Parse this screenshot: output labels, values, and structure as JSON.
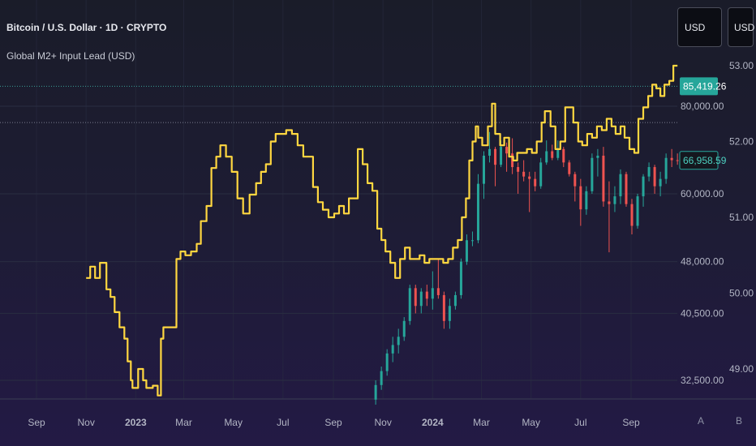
{
  "header": {
    "symbol_title": "Bitcoin / U.S. Dollar · 1D · CRYPTO",
    "indicator_title": "Global M2+ Input Lead (USD)"
  },
  "price_scale_buttons": {
    "unit_right": "USD",
    "unit_left": "USD"
  },
  "bottom_buttons": {
    "auto": "A",
    "b": "B"
  },
  "colors": {
    "m2_line": "#ffd740",
    "candle_up": "#26a69a",
    "candle_down": "#ef5350",
    "price_tag_current": "#26a69a",
    "price_tag_outline": "#26a69a",
    "grid": "#2a2e42"
  },
  "chart_data": {
    "type": "line",
    "x_axis": {
      "type": "date",
      "range": [
        "2022-08-10",
        "2024-10-31"
      ],
      "ticks": [
        {
          "label": "Sep",
          "date": "2022-09-01"
        },
        {
          "label": "Nov",
          "date": "2022-11-01"
        },
        {
          "label": "2023",
          "date": "2023-01-01",
          "bold": true
        },
        {
          "label": "Mar",
          "date": "2023-03-01"
        },
        {
          "label": "May",
          "date": "2023-05-01"
        },
        {
          "label": "Jul",
          "date": "2023-07-01"
        },
        {
          "label": "Sep",
          "date": "2023-09-01"
        },
        {
          "label": "Nov",
          "date": "2023-11-01"
        },
        {
          "label": "2024",
          "date": "2024-01-01",
          "bold": true
        },
        {
          "label": "Mar",
          "date": "2024-03-01"
        },
        {
          "label": "May",
          "date": "2024-05-01"
        },
        {
          "label": "Jul",
          "date": "2024-07-01"
        },
        {
          "label": "Sep",
          "date": "2024-09-01"
        }
      ]
    },
    "left_axis": {
      "name": "BTCUSD",
      "scale": "log",
      "ticks": [
        {
          "label": "80,000.00",
          "value": 80000
        },
        {
          "label": "60,000.00",
          "value": 60000
        },
        {
          "label": "48,000.00",
          "value": 48000
        },
        {
          "label": "40,500.00",
          "value": 40500
        },
        {
          "label": "32,500.00",
          "value": 32500
        }
      ]
    },
    "right_axis": {
      "name": "Global M2+",
      "range": [
        48.6,
        53.2
      ],
      "ticks": [
        {
          "label": "53.00",
          "value": 53
        },
        {
          "label": "52.00",
          "value": 52
        },
        {
          "label": "51.00",
          "value": 51
        },
        {
          "label": "50.00",
          "value": 50
        },
        {
          "label": "49.00",
          "value": 49
        }
      ]
    },
    "price_tags": [
      {
        "label": "85,419.26",
        "value": 85419.26,
        "style": "filled"
      },
      {
        "label": "66,958.59",
        "value": 66958.59,
        "style": "outline"
      }
    ],
    "horizontal_lines": [
      {
        "value": 85419.26,
        "axis": "left",
        "style": "dotted"
      },
      {
        "value": 52.25,
        "axis": "right",
        "style": "dotted"
      }
    ],
    "series": [
      {
        "name": "Global M2+ Input Lead (USD)",
        "axis": "right",
        "type": "step-line",
        "points": [
          [
            "2022-11-01",
            50.2
          ],
          [
            "2022-11-06",
            50.35
          ],
          [
            "2022-11-12",
            50.2
          ],
          [
            "2022-11-18",
            50.4
          ],
          [
            "2022-11-26",
            50.05
          ],
          [
            "2022-12-01",
            49.95
          ],
          [
            "2022-12-06",
            49.75
          ],
          [
            "2022-12-12",
            49.55
          ],
          [
            "2022-12-18",
            49.4
          ],
          [
            "2022-12-22",
            49.1
          ],
          [
            "2022-12-26",
            48.85
          ],
          [
            "2022-12-28",
            48.75
          ],
          [
            "2023-01-04",
            49.0
          ],
          [
            "2023-01-10",
            48.85
          ],
          [
            "2023-01-14",
            48.75
          ],
          [
            "2023-01-22",
            48.78
          ],
          [
            "2023-01-28",
            48.65
          ],
          [
            "2023-02-01",
            49.4
          ],
          [
            "2023-02-04",
            49.55
          ],
          [
            "2023-02-12",
            49.55
          ],
          [
            "2023-02-20",
            50.45
          ],
          [
            "2023-02-25",
            50.55
          ],
          [
            "2023-03-03",
            50.5
          ],
          [
            "2023-03-10",
            50.55
          ],
          [
            "2023-03-17",
            50.65
          ],
          [
            "2023-03-22",
            50.95
          ],
          [
            "2023-03-29",
            51.15
          ],
          [
            "2023-04-04",
            51.65
          ],
          [
            "2023-04-10",
            51.8
          ],
          [
            "2023-04-15",
            51.95
          ],
          [
            "2023-04-22",
            51.8
          ],
          [
            "2023-04-29",
            51.6
          ],
          [
            "2023-05-06",
            51.25
          ],
          [
            "2023-05-13",
            51.05
          ],
          [
            "2023-05-21",
            51.3
          ],
          [
            "2023-05-29",
            51.45
          ],
          [
            "2023-06-04",
            51.6
          ],
          [
            "2023-06-10",
            51.7
          ],
          [
            "2023-06-16",
            52.0
          ],
          [
            "2023-06-22",
            52.1
          ],
          [
            "2023-06-29",
            52.1
          ],
          [
            "2023-07-05",
            52.15
          ],
          [
            "2023-07-12",
            52.1
          ],
          [
            "2023-07-19",
            51.95
          ],
          [
            "2023-07-26",
            51.8
          ],
          [
            "2023-08-01",
            51.8
          ],
          [
            "2023-08-07",
            51.4
          ],
          [
            "2023-08-13",
            51.2
          ],
          [
            "2023-08-19",
            51.1
          ],
          [
            "2023-08-26",
            51.0
          ],
          [
            "2023-09-02",
            51.05
          ],
          [
            "2023-09-08",
            51.15
          ],
          [
            "2023-09-14",
            51.05
          ],
          [
            "2023-09-20",
            51.25
          ],
          [
            "2023-09-26",
            51.25
          ],
          [
            "2023-10-01",
            51.9
          ],
          [
            "2023-10-07",
            51.7
          ],
          [
            "2023-10-13",
            51.45
          ],
          [
            "2023-10-19",
            51.35
          ],
          [
            "2023-10-25",
            50.85
          ],
          [
            "2023-10-30",
            50.7
          ],
          [
            "2023-11-04",
            50.55
          ],
          [
            "2023-11-10",
            50.4
          ],
          [
            "2023-11-16",
            50.2
          ],
          [
            "2023-11-22",
            50.45
          ],
          [
            "2023-11-28",
            50.6
          ],
          [
            "2023-12-04",
            50.45
          ],
          [
            "2023-12-10",
            50.45
          ],
          [
            "2023-12-16",
            50.5
          ],
          [
            "2023-12-22",
            50.4
          ],
          [
            "2023-12-28",
            50.45
          ],
          [
            "2024-01-06",
            50.45
          ],
          [
            "2024-01-14",
            50.4
          ],
          [
            "2024-01-20",
            50.45
          ],
          [
            "2024-01-26",
            50.6
          ],
          [
            "2024-02-01",
            50.7
          ],
          [
            "2024-02-06",
            51.0
          ],
          [
            "2024-02-11",
            51.25
          ],
          [
            "2024-02-15",
            51.75
          ],
          [
            "2024-02-19",
            52.0
          ],
          [
            "2024-02-23",
            52.2
          ],
          [
            "2024-02-26",
            52.05
          ],
          [
            "2024-03-02",
            51.95
          ],
          [
            "2024-03-09",
            52.2
          ],
          [
            "2024-03-14",
            52.5
          ],
          [
            "2024-03-18",
            52.1
          ],
          [
            "2024-03-24",
            51.95
          ],
          [
            "2024-03-29",
            52.05
          ],
          [
            "2024-04-04",
            51.8
          ],
          [
            "2024-04-09",
            51.75
          ],
          [
            "2024-04-14",
            51.85
          ],
          [
            "2024-04-20",
            51.85
          ],
          [
            "2024-04-26",
            51.9
          ],
          [
            "2024-05-02",
            51.85
          ],
          [
            "2024-05-08",
            52.0
          ],
          [
            "2024-05-14",
            52.25
          ],
          [
            "2024-05-18",
            52.4
          ],
          [
            "2024-05-25",
            52.2
          ],
          [
            "2024-05-31",
            51.9
          ],
          [
            "2024-06-06",
            52.0
          ],
          [
            "2024-06-12",
            52.45
          ],
          [
            "2024-06-17",
            52.45
          ],
          [
            "2024-06-22",
            52.25
          ],
          [
            "2024-06-28",
            52.0
          ],
          [
            "2024-07-03",
            51.95
          ],
          [
            "2024-07-09",
            52.1
          ],
          [
            "2024-07-15",
            52.05
          ],
          [
            "2024-07-21",
            52.2
          ],
          [
            "2024-07-27",
            52.15
          ],
          [
            "2024-08-02",
            52.3
          ],
          [
            "2024-08-08",
            52.2
          ],
          [
            "2024-08-13",
            52.1
          ],
          [
            "2024-08-19",
            52.2
          ],
          [
            "2024-08-24",
            52.05
          ],
          [
            "2024-08-30",
            51.9
          ],
          [
            "2024-09-05",
            51.85
          ],
          [
            "2024-09-10",
            52.3
          ],
          [
            "2024-09-16",
            52.45
          ],
          [
            "2024-09-22",
            52.6
          ],
          [
            "2024-09-27",
            52.75
          ],
          [
            "2024-10-02",
            52.7
          ],
          [
            "2024-10-07",
            52.6
          ],
          [
            "2024-10-12",
            52.75
          ],
          [
            "2024-10-18",
            52.8
          ],
          [
            "2024-10-23",
            53.0
          ],
          [
            "2024-10-28",
            53.0
          ]
        ]
      },
      {
        "name": "BTCUSD",
        "axis": "left",
        "type": "candlestick",
        "ohlc": [
          [
            "2023-10-23",
            30500,
            32500,
            30000,
            32000
          ],
          [
            "2023-10-30",
            32000,
            34000,
            31500,
            33500
          ],
          [
            "2023-11-06",
            33500,
            36000,
            33000,
            35500
          ],
          [
            "2023-11-13",
            35500,
            37500,
            34500,
            36500
          ],
          [
            "2023-11-20",
            36500,
            38500,
            35500,
            37500
          ],
          [
            "2023-11-27",
            37500,
            40000,
            37000,
            39500
          ],
          [
            "2023-12-04",
            39500,
            44500,
            39000,
            44000
          ],
          [
            "2023-12-11",
            44000,
            44500,
            40500,
            41500
          ],
          [
            "2023-12-18",
            41500,
            44000,
            40500,
            43500
          ],
          [
            "2023-12-25",
            43500,
            44500,
            41500,
            42500
          ],
          [
            "2024-01-01",
            42500,
            46500,
            41000,
            44000
          ],
          [
            "2024-01-08",
            44000,
            48500,
            42500,
            43000
          ],
          [
            "2024-01-15",
            43000,
            43500,
            38500,
            39500
          ],
          [
            "2024-01-22",
            39500,
            42500,
            38500,
            41500
          ],
          [
            "2024-01-29",
            41500,
            43500,
            41000,
            43000
          ],
          [
            "2024-02-05",
            43000,
            48500,
            42500,
            48000
          ],
          [
            "2024-02-12",
            48000,
            52500,
            47500,
            51500
          ],
          [
            "2024-02-19",
            51500,
            53000,
            50500,
            51500
          ],
          [
            "2024-02-26",
            51500,
            64000,
            51000,
            62000
          ],
          [
            "2024-03-04",
            62000,
            69000,
            59000,
            68000
          ],
          [
            "2024-03-11",
            68000,
            73500,
            66500,
            69500
          ],
          [
            "2024-03-18",
            69500,
            70000,
            61500,
            66000
          ],
          [
            "2024-03-25",
            66000,
            71500,
            65500,
            70000
          ],
          [
            "2024-04-01",
            70000,
            71000,
            64500,
            68500
          ],
          [
            "2024-04-08",
            68500,
            72000,
            64000,
            65500
          ],
          [
            "2024-04-15",
            65500,
            66500,
            60000,
            64500
          ],
          [
            "2024-04-22",
            64500,
            67000,
            62500,
            63500
          ],
          [
            "2024-04-29",
            63500,
            64500,
            56500,
            63000
          ],
          [
            "2024-05-06",
            63000,
            64500,
            60500,
            61500
          ],
          [
            "2024-05-13",
            61500,
            67500,
            61000,
            66500
          ],
          [
            "2024-05-20",
            66500,
            71500,
            66000,
            69000
          ],
          [
            "2024-05-27",
            69000,
            70500,
            67000,
            67500
          ],
          [
            "2024-06-03",
            67500,
            71500,
            67000,
            69500
          ],
          [
            "2024-06-10",
            69500,
            70000,
            65500,
            66500
          ],
          [
            "2024-06-17",
            66500,
            67000,
            63500,
            64000
          ],
          [
            "2024-06-24",
            64000,
            64500,
            58500,
            61500
          ],
          [
            "2024-07-01",
            61500,
            63000,
            54000,
            57000
          ],
          [
            "2024-07-08",
            57000,
            61500,
            56000,
            60500
          ],
          [
            "2024-07-15",
            60500,
            68500,
            60000,
            67500
          ],
          [
            "2024-07-22",
            67500,
            69500,
            63500,
            68000
          ],
          [
            "2024-07-29",
            68000,
            70000,
            57500,
            58500
          ],
          [
            "2024-08-05",
            58500,
            62500,
            49500,
            58000
          ],
          [
            "2024-08-12",
            58000,
            61500,
            56500,
            59500
          ],
          [
            "2024-08-19",
            59500,
            65000,
            58000,
            64000
          ],
          [
            "2024-08-26",
            64000,
            64500,
            57500,
            58000
          ],
          [
            "2024-09-02",
            58000,
            59000,
            52500,
            54000
          ],
          [
            "2024-09-09",
            54000,
            60000,
            53500,
            59500
          ],
          [
            "2024-09-16",
            59500,
            64000,
            57500,
            63500
          ],
          [
            "2024-09-23",
            63500,
            66500,
            62500,
            65500
          ],
          [
            "2024-09-30",
            65500,
            66000,
            60000,
            61500
          ],
          [
            "2024-10-07",
            61500,
            64500,
            59500,
            63000
          ],
          [
            "2024-10-14",
            63000,
            68500,
            62000,
            67500
          ],
          [
            "2024-10-21",
            67500,
            69500,
            65500,
            67000
          ],
          [
            "2024-10-28",
            67000,
            68500,
            66000,
            66958.59
          ]
        ]
      }
    ]
  }
}
